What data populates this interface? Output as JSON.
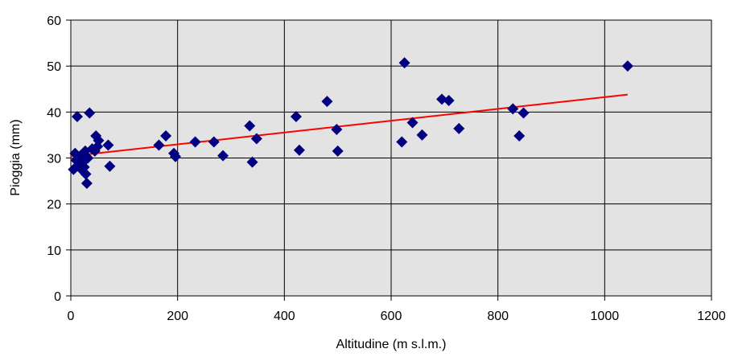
{
  "chart_data": {
    "type": "scatter",
    "title": "",
    "xlabel": "Altitudine (m s.l.m.)",
    "ylabel": "Pioggia (mm)",
    "xlim": [
      0,
      1200
    ],
    "ylim": [
      0,
      60
    ],
    "xticks": [
      0,
      200,
      400,
      600,
      800,
      1000,
      1200
    ],
    "yticks": [
      0,
      10,
      20,
      30,
      40,
      50,
      60
    ],
    "grid": true,
    "legend": "none",
    "colors": {
      "plot_background": "#e3e3e3",
      "marker": "#000080",
      "trendline": "#ff0000",
      "grid": "#000000"
    },
    "series": [
      {
        "marker": "diamond",
        "points": [
          [
            5,
            27.5
          ],
          [
            8,
            31.0
          ],
          [
            10,
            29.5
          ],
          [
            12,
            39.0
          ],
          [
            15,
            28.5
          ],
          [
            18,
            30.5
          ],
          [
            20,
            27.5
          ],
          [
            22,
            29.0
          ],
          [
            25,
            28.0
          ],
          [
            27,
            31.5
          ],
          [
            28,
            26.5
          ],
          [
            30,
            24.5
          ],
          [
            32,
            30.0
          ],
          [
            35,
            39.8
          ],
          [
            40,
            32.0
          ],
          [
            45,
            31.5
          ],
          [
            47,
            34.8
          ],
          [
            50,
            32.5
          ],
          [
            52,
            33.8
          ],
          [
            70,
            32.8
          ],
          [
            73,
            28.2
          ],
          [
            165,
            32.8
          ],
          [
            178,
            34.8
          ],
          [
            193,
            31.0
          ],
          [
            196,
            30.3
          ],
          [
            233,
            33.5
          ],
          [
            268,
            33.5
          ],
          [
            285,
            30.5
          ],
          [
            335,
            37.0
          ],
          [
            340,
            29.1
          ],
          [
            348,
            34.2
          ],
          [
            422,
            39.0
          ],
          [
            428,
            31.7
          ],
          [
            480,
            42.3
          ],
          [
            498,
            36.2
          ],
          [
            500,
            31.5
          ],
          [
            620,
            33.5
          ],
          [
            625,
            50.7
          ],
          [
            640,
            37.7
          ],
          [
            658,
            35.0
          ],
          [
            695,
            42.8
          ],
          [
            708,
            42.5
          ],
          [
            727,
            36.4
          ],
          [
            828,
            40.7
          ],
          [
            840,
            34.8
          ],
          [
            848,
            39.8
          ],
          [
            1043,
            50.0
          ]
        ]
      }
    ],
    "trendline": {
      "type": "linear",
      "x": [
        0,
        1043
      ],
      "y": [
        30.4,
        43.8
      ]
    }
  }
}
